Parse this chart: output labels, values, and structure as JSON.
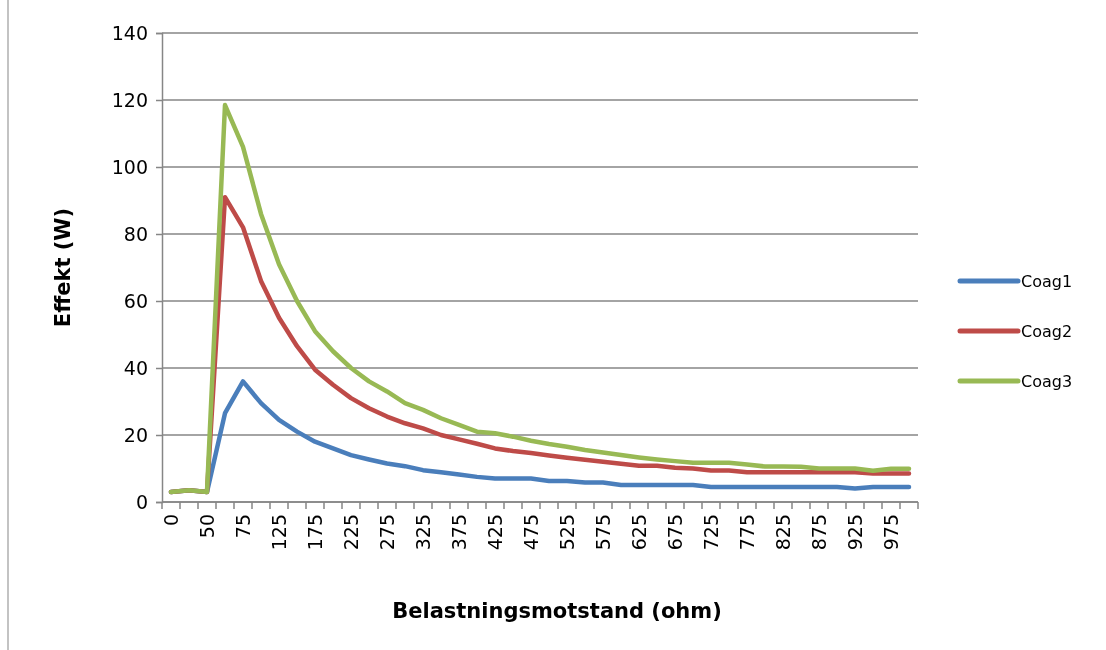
{
  "chart_data": {
    "type": "line",
    "xlabel": "Belastningsmotstand (ohm)",
    "ylabel": "Effekt (W)",
    "categories": [
      "0",
      null,
      "50",
      null,
      "75",
      null,
      "125",
      null,
      "175",
      null,
      "225",
      null,
      "275",
      null,
      "325",
      null,
      "375",
      null,
      "425",
      null,
      "475",
      null,
      "525",
      null,
      "575",
      null,
      "625",
      null,
      "675",
      null,
      "725",
      null,
      "775",
      null,
      "825",
      null,
      "875",
      null,
      "925",
      null,
      "975",
      null
    ],
    "ylim": [
      0,
      140
    ],
    "yticks": [
      0,
      20,
      40,
      60,
      80,
      100,
      120,
      140
    ],
    "grid": "y",
    "legend": "right",
    "marker": "none",
    "line_style": "solid",
    "series": [
      {
        "name": "Coag1",
        "color": "#4a7ebb",
        "values": [
          3,
          3.5,
          3,
          26.5,
          36,
          29.5,
          24.5,
          21,
          18,
          16,
          14,
          12.7,
          11.5,
          10.7,
          9.5,
          8.9,
          8.2,
          7.5,
          7,
          7,
          7,
          6.3,
          6.3,
          5.8,
          5.8,
          5.1,
          5.1,
          5.1,
          5.1,
          5.1,
          4.5,
          4.5,
          4.5,
          4.5,
          4.5,
          4.5,
          4.5,
          4.5,
          4,
          4.5,
          4.5,
          4.5
        ]
      },
      {
        "name": "Coag2",
        "color": "#be4b48",
        "values": [
          3,
          3.5,
          3,
          91,
          82,
          66,
          55,
          46.5,
          39.5,
          35,
          31,
          28,
          25.5,
          23.5,
          22,
          20,
          18.7,
          17.4,
          16,
          15.2,
          14.6,
          13.9,
          13.2,
          12.6,
          12,
          11.4,
          10.8,
          10.8,
          10.2,
          10,
          9.4,
          9.4,
          8.9,
          8.9,
          8.9,
          8.9,
          8.9,
          8.9,
          8.9,
          8.5,
          8.5,
          8.5
        ]
      },
      {
        "name": "Coag3",
        "color": "#98b954",
        "values": [
          3,
          3.5,
          3,
          118.5,
          106,
          86,
          71,
          60,
          51,
          45,
          40,
          36,
          33,
          29.5,
          27.5,
          25,
          23,
          21,
          20.5,
          19.5,
          18.3,
          17.3,
          16.5,
          15.5,
          14.8,
          14,
          13.3,
          12.7,
          12.2,
          11.7,
          11.7,
          11.7,
          11.2,
          10.6,
          10.6,
          10.5,
          10,
          10,
          10,
          9.3,
          9.9,
          9.9
        ]
      }
    ]
  }
}
